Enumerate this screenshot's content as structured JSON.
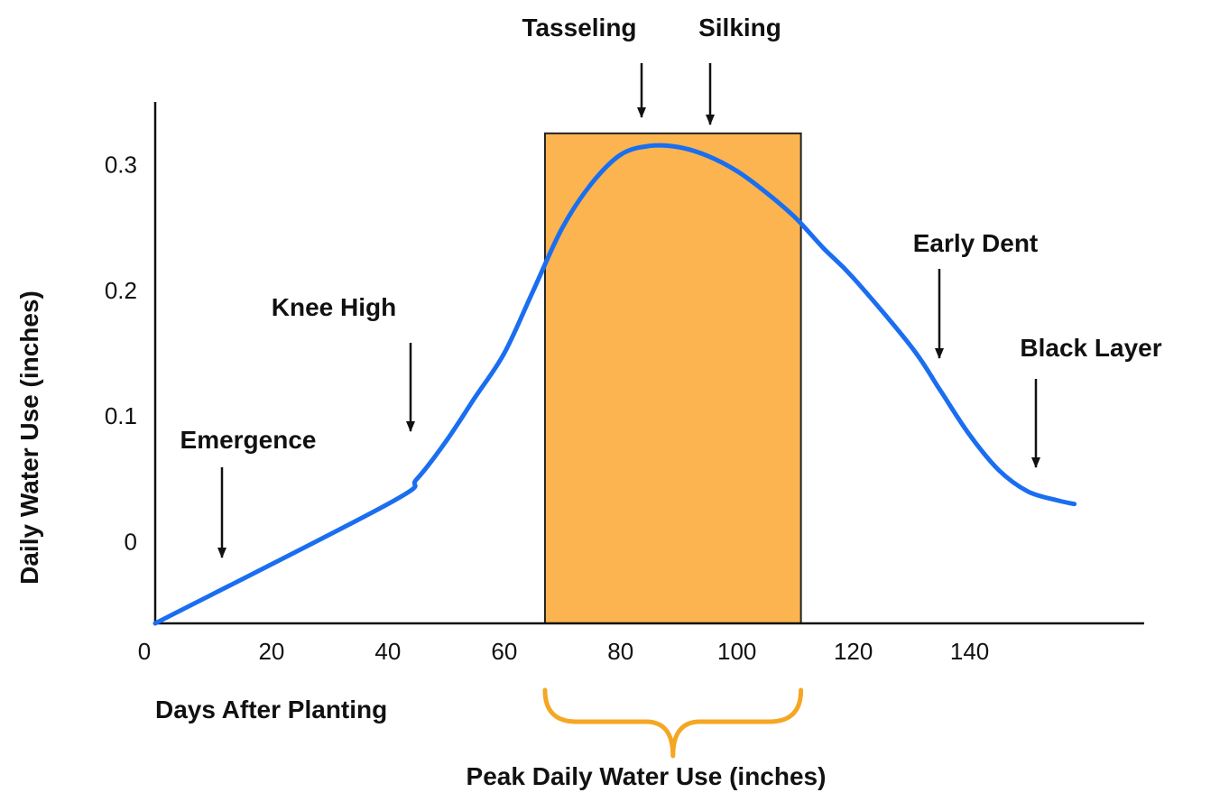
{
  "chart_data": {
    "type": "line",
    "xlabel": "Days After Planting",
    "ylabel": "Daily Water Use (inches)",
    "xlim": [
      0,
      170
    ],
    "ylim": [
      -0.065,
      0.35
    ],
    "x_ticks": [
      0,
      20,
      40,
      60,
      80,
      100,
      120,
      140
    ],
    "y_ticks": [
      0,
      0.1,
      0.2,
      0.3
    ],
    "grid": false,
    "series": [
      {
        "color": "#1a6ef0",
        "x": [
          0,
          40,
          45,
          50,
          55,
          60,
          65,
          70,
          75,
          80,
          85,
          90,
          95,
          100,
          105,
          110,
          115,
          120,
          130,
          135,
          140,
          145,
          150,
          155,
          158
        ],
        "y": [
          -0.065,
          0.03,
          0.05,
          0.08,
          0.115,
          0.15,
          0.2,
          0.25,
          0.285,
          0.308,
          0.315,
          0.314,
          0.307,
          0.295,
          0.278,
          0.258,
          0.233,
          0.21,
          0.155,
          0.12,
          0.085,
          0.057,
          0.04,
          0.033,
          0.03
        ]
      }
    ],
    "highlight": {
      "x_start": 67,
      "x_end": 111,
      "y_top": 0.325,
      "color": "#fbb44f",
      "brace_color": "#f5a623",
      "label": "Peak Daily Water Use (inches)"
    },
    "annotations": [
      {
        "text": "Emergence",
        "x": 11,
        "y": -0.02
      },
      {
        "text": "Knee High",
        "x": 44,
        "y": 0.08
      },
      {
        "text": "Tasseling",
        "x": 83,
        "y": 0.315
      },
      {
        "text": "Silking",
        "x": 95,
        "y": 0.325
      },
      {
        "text": "Early Dent",
        "x": 135,
        "y": 0.14
      },
      {
        "text": "Black Layer",
        "x": 151,
        "y": 0.05
      }
    ]
  }
}
